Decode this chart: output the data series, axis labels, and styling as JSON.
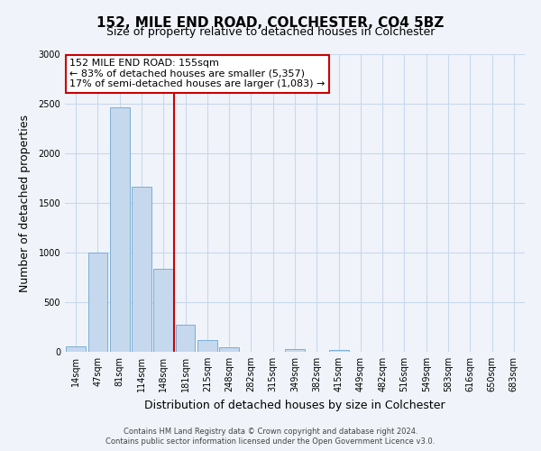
{
  "title": "152, MILE END ROAD, COLCHESTER, CO4 5BZ",
  "subtitle": "Size of property relative to detached houses in Colchester",
  "xlabel": "Distribution of detached houses by size in Colchester",
  "ylabel": "Number of detached properties",
  "bar_labels": [
    "14sqm",
    "47sqm",
    "81sqm",
    "114sqm",
    "148sqm",
    "181sqm",
    "215sqm",
    "248sqm",
    "282sqm",
    "315sqm",
    "349sqm",
    "382sqm",
    "415sqm",
    "449sqm",
    "482sqm",
    "516sqm",
    "549sqm",
    "583sqm",
    "616sqm",
    "650sqm",
    "683sqm"
  ],
  "bar_values": [
    55,
    1000,
    2460,
    1660,
    840,
    270,
    120,
    50,
    0,
    0,
    30,
    0,
    15,
    0,
    0,
    0,
    0,
    0,
    0,
    0,
    0
  ],
  "bar_color": "#c5d8ee",
  "bar_edge_color": "#7aafd4",
  "vline_x": 4.5,
  "vline_color": "#cc0000",
  "annotation_title": "152 MILE END ROAD: 155sqm",
  "annotation_line1": "← 83% of detached houses are smaller (5,357)",
  "annotation_line2": "17% of semi-detached houses are larger (1,083) →",
  "annotation_box_facecolor": "#ffffff",
  "annotation_box_edgecolor": "#cc0000",
  "ylim": [
    0,
    3000
  ],
  "yticks": [
    0,
    500,
    1000,
    1500,
    2000,
    2500,
    3000
  ],
  "footer_line1": "Contains HM Land Registry data © Crown copyright and database right 2024.",
  "footer_line2": "Contains public sector information licensed under the Open Government Licence v3.0.",
  "fig_facecolor": "#f0f4fa",
  "plot_facecolor": "#f0f4fa",
  "grid_color": "#c8d8ec",
  "title_fontsize": 11,
  "subtitle_fontsize": 9,
  "xlabel_fontsize": 9,
  "ylabel_fontsize": 9,
  "tick_fontsize": 7,
  "footer_fontsize": 6,
  "annot_fontsize": 8
}
